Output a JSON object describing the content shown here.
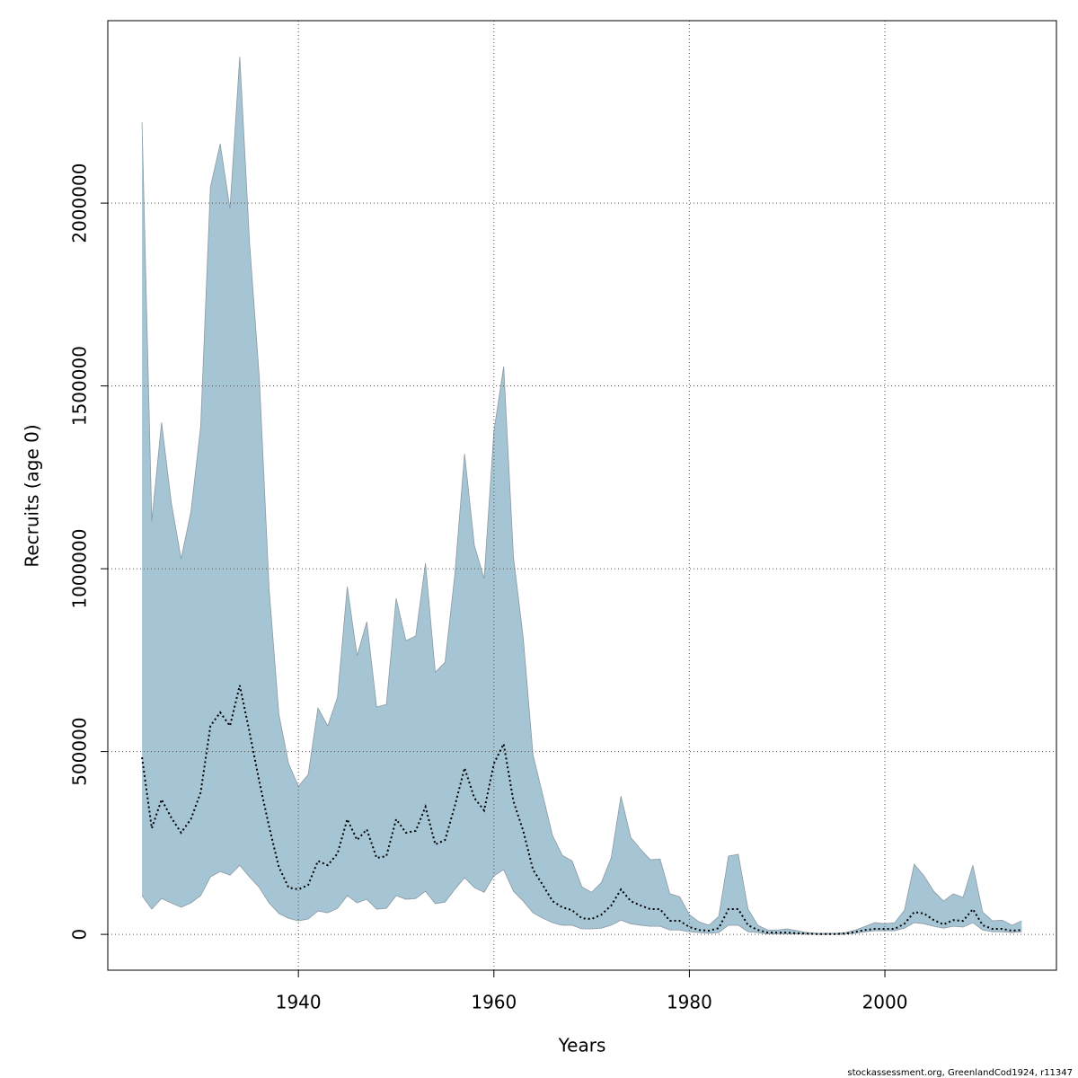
{
  "chart_data": {
    "type": "band-line",
    "x_label": "Years",
    "y_label": "Recruits (age 0)",
    "footnote": "stockassessment.org, GreenlandCod1924, r11347",
    "band_color": "#a5c4d4",
    "band_edge_color": "#8a9aa3",
    "line_color": "#000000",
    "grid": true,
    "xlim": [
      1920.5,
      2017.55
    ],
    "ylim": [
      -98000,
      2499000
    ],
    "xticks": [
      1940,
      1960,
      1980,
      2000
    ],
    "yticks": [
      0,
      500000,
      1000000,
      1500000,
      2000000
    ],
    "x": [
      1924,
      1925,
      1926,
      1927,
      1928,
      1929,
      1930,
      1931,
      1932,
      1933,
      1934,
      1935,
      1936,
      1937,
      1938,
      1939,
      1940,
      1941,
      1942,
      1943,
      1944,
      1945,
      1946,
      1947,
      1948,
      1949,
      1950,
      1951,
      1952,
      1953,
      1954,
      1955,
      1956,
      1957,
      1958,
      1959,
      1960,
      1961,
      1962,
      1963,
      1964,
      1965,
      1966,
      1967,
      1968,
      1969,
      1970,
      1971,
      1972,
      1973,
      1974,
      1975,
      1976,
      1977,
      1978,
      1979,
      1980,
      1981,
      1982,
      1983,
      1984,
      1985,
      1986,
      1987,
      1988,
      1989,
      1990,
      1991,
      1992,
      1993,
      1994,
      1995,
      1996,
      1997,
      1998,
      1999,
      2000,
      2001,
      2002,
      2003,
      2004,
      2005,
      2006,
      2007,
      2008,
      2009,
      2010,
      2011,
      2012,
      2013,
      2014
    ],
    "upper": [
      2221000,
      1130000,
      1400000,
      1180000,
      1027000,
      1155000,
      1388000,
      2044000,
      2162000,
      1985000,
      2400000,
      1892000,
      1523000,
      946000,
      602000,
      467000,
      405000,
      437000,
      619000,
      570000,
      649000,
      951000,
      762000,
      855000,
      622000,
      629000,
      919000,
      803000,
      816000,
      1015000,
      717000,
      744000,
      983000,
      1314000,
      1064000,
      973000,
      1376000,
      1553000,
      1032000,
      811000,
      491000,
      381000,
      270000,
      216000,
      201000,
      130000,
      115000,
      142000,
      209000,
      378000,
      265000,
      233000,
      204000,
      206000,
      111000,
      103000,
      54000,
      34000,
      25000,
      49000,
      214000,
      219000,
      69000,
      25000,
      12000,
      12000,
      15000,
      10000,
      5000,
      3000,
      3000,
      3000,
      5000,
      12000,
      22000,
      32000,
      29000,
      32000,
      66000,
      192000,
      160000,
      118000,
      91000,
      111000,
      101000,
      189000,
      61000,
      37000,
      39000,
      25000,
      37000
    ],
    "lower": [
      106000,
      69000,
      98000,
      86000,
      74000,
      86000,
      106000,
      157000,
      172000,
      162000,
      189000,
      157000,
      128000,
      86000,
      57000,
      44000,
      37000,
      42000,
      64000,
      59000,
      71000,
      106000,
      86000,
      96000,
      69000,
      71000,
      106000,
      96000,
      98000,
      118000,
      84000,
      88000,
      123000,
      155000,
      128000,
      115000,
      160000,
      177000,
      118000,
      91000,
      59000,
      44000,
      32000,
      25000,
      25000,
      15000,
      15000,
      17000,
      25000,
      39000,
      29000,
      25000,
      22000,
      22000,
      12000,
      12000,
      7000,
      5000,
      3000,
      5000,
      25000,
      25000,
      7000,
      5000,
      1000,
      1000,
      1000,
      1000,
      500,
      300,
      300,
      300,
      500,
      3000,
      7000,
      10000,
      10000,
      10000,
      17000,
      32000,
      29000,
      22000,
      17000,
      22000,
      20000,
      32000,
      12000,
      7000,
      7000,
      5000,
      7000
    ],
    "median": [
      484000,
      290000,
      369000,
      319000,
      278000,
      315000,
      388000,
      570000,
      607000,
      570000,
      681000,
      553000,
      418000,
      295000,
      184000,
      128000,
      123000,
      135000,
      201000,
      189000,
      221000,
      315000,
      258000,
      287000,
      209000,
      214000,
      315000,
      278000,
      283000,
      349000,
      246000,
      258000,
      351000,
      455000,
      373000,
      339000,
      467000,
      521000,
      364000,
      283000,
      177000,
      135000,
      91000,
      74000,
      66000,
      44000,
      42000,
      54000,
      79000,
      123000,
      91000,
      79000,
      69000,
      69000,
      37000,
      37000,
      20000,
      12000,
      10000,
      17000,
      69000,
      69000,
      25000,
      12000,
      5000,
      5000,
      5000,
      3000,
      2000,
      1000,
      1000,
      1000,
      2000,
      7000,
      12000,
      15000,
      15000,
      15000,
      29000,
      61000,
      57000,
      39000,
      27000,
      39000,
      37000,
      69000,
      25000,
      15000,
      15000,
      10000,
      12000
    ]
  }
}
